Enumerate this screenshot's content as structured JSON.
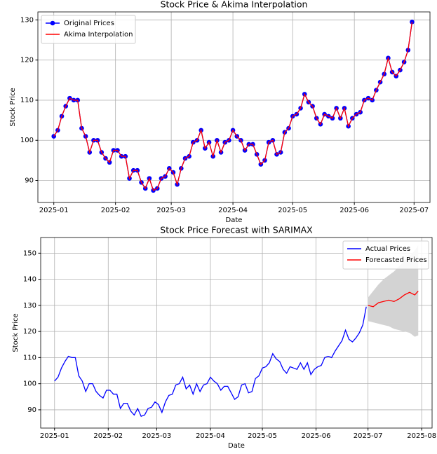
{
  "chart_data": [
    {
      "type": "line",
      "title": "Stock Price & Akima Interpolation",
      "xlabel": "Date",
      "ylabel": "Stock Price",
      "x": [
        0,
        2,
        4,
        6,
        8,
        10,
        12,
        14,
        16,
        18,
        20,
        22,
        24,
        26,
        28,
        30,
        32,
        34,
        36,
        38,
        40,
        42,
        44,
        46,
        48,
        50,
        52,
        54,
        56,
        58,
        60,
        62,
        64,
        66,
        68,
        70,
        72,
        74,
        76,
        78,
        80,
        82,
        84,
        86,
        88,
        90,
        92,
        94,
        96,
        98,
        100,
        102,
        104,
        106,
        108,
        110,
        112,
        114,
        116,
        118,
        120,
        122,
        124,
        126,
        128,
        130,
        132,
        134,
        136,
        138,
        140,
        142,
        144,
        146,
        148,
        150,
        152,
        154,
        156,
        158,
        160,
        162,
        164,
        166,
        168,
        170,
        172,
        174,
        176,
        178,
        180
      ],
      "series": [
        {
          "name": "Original Prices",
          "color": "#0000ff",
          "marker": true,
          "values": [
            101,
            102.5,
            106,
            108.5,
            110.5,
            110,
            110,
            103,
            101,
            97,
            100,
            100,
            97,
            95.5,
            94.5,
            97.5,
            97.5,
            96,
            96,
            90.5,
            92.5,
            92.5,
            89.5,
            88,
            90.5,
            87.5,
            88,
            90.5,
            91,
            93,
            92,
            89,
            93,
            95.5,
            96,
            99.5,
            100,
            102.5,
            98,
            99.5,
            96,
            100,
            97,
            99.5,
            100,
            102.5,
            101,
            100,
            97.5,
            99,
            99,
            96.5,
            94,
            95,
            99.5,
            100,
            96.5,
            97,
            102,
            103,
            106,
            106.5,
            108,
            111.5,
            109.5,
            108.5,
            105.5,
            104,
            106.5,
            106,
            105.5,
            108,
            105.5,
            108,
            103.5,
            105.5,
            106.5,
            107,
            110,
            110.5,
            110,
            112.5,
            114.5,
            116.5,
            120.5,
            117,
            116,
            117.5,
            119.5,
            122.5,
            129.5
          ]
        },
        {
          "name": "Akima Interpolation",
          "color": "#ff0000",
          "marker": false,
          "values": [
            101,
            102.5,
            106,
            108.5,
            110.5,
            110,
            110,
            103,
            101,
            97,
            100,
            100,
            97,
            95.5,
            94.5,
            97.5,
            97.5,
            96,
            96,
            90.5,
            92.5,
            92.5,
            89.5,
            88,
            90.5,
            87.5,
            88,
            90.5,
            91,
            93,
            92,
            89,
            93,
            95.5,
            96,
            99.5,
            100,
            102.5,
            98,
            99.5,
            96,
            100,
            97,
            99.5,
            100,
            102.5,
            101,
            100,
            97.5,
            99,
            99,
            96.5,
            94,
            95,
            99.5,
            100,
            96.5,
            97,
            102,
            103,
            106,
            106.5,
            108,
            111.5,
            109.5,
            108.5,
            105.5,
            104,
            106.5,
            106,
            105.5,
            108,
            105.5,
            108,
            103.5,
            105.5,
            106.5,
            107,
            110,
            110.5,
            110,
            112.5,
            114.5,
            116.5,
            120.5,
            117,
            116,
            117.5,
            119.5,
            122.5,
            129.5
          ]
        }
      ],
      "xlim": [
        -8,
        189
      ],
      "ylim": [
        84.5,
        132
      ],
      "xticks": [
        {
          "value": 0,
          "label": "2025-01"
        },
        {
          "value": 31,
          "label": "2025-02"
        },
        {
          "value": 59,
          "label": "2025-03"
        },
        {
          "value": 90,
          "label": "2025-04"
        },
        {
          "value": 120,
          "label": "2025-05"
        },
        {
          "value": 151,
          "label": "2025-06"
        },
        {
          "value": 181,
          "label": "2025-07"
        }
      ],
      "yticks": [
        90,
        100,
        110,
        120,
        130
      ],
      "grid": true,
      "legend": "upper left"
    },
    {
      "type": "line",
      "title": "Stock Price Forecast with SARIMAX",
      "xlabel": "Date",
      "ylabel": "Stock Price",
      "x": [
        0,
        2,
        4,
        6,
        8,
        10,
        12,
        14,
        16,
        18,
        20,
        22,
        24,
        26,
        28,
        30,
        32,
        34,
        36,
        38,
        40,
        42,
        44,
        46,
        48,
        50,
        52,
        54,
        56,
        58,
        60,
        62,
        64,
        66,
        68,
        70,
        72,
        74,
        76,
        78,
        80,
        82,
        84,
        86,
        88,
        90,
        92,
        94,
        96,
        98,
        100,
        102,
        104,
        106,
        108,
        110,
        112,
        114,
        116,
        118,
        120,
        122,
        124,
        126,
        128,
        130,
        132,
        134,
        136,
        138,
        140,
        142,
        144,
        146,
        148,
        150,
        152,
        154,
        156,
        158,
        160,
        162,
        164,
        166,
        168,
        170,
        172,
        174,
        176,
        178,
        180
      ],
      "series": [
        {
          "name": "Actual Prices",
          "color": "#0000ff",
          "values": [
            101,
            102.5,
            106,
            108.5,
            110.5,
            110,
            110,
            103,
            101,
            97,
            100,
            100,
            97,
            95.5,
            94.5,
            97.5,
            97.5,
            96,
            96,
            90.5,
            92.5,
            92.5,
            89.5,
            88,
            90.5,
            87.5,
            88,
            90.5,
            91,
            93,
            92,
            89,
            93,
            95.5,
            96,
            99.5,
            100,
            102.5,
            98,
            99.5,
            96,
            100,
            97,
            99.5,
            100,
            102.5,
            101,
            100,
            97.5,
            99,
            99,
            96.5,
            94,
            95,
            99.5,
            100,
            96.5,
            97,
            102,
            103,
            106,
            106.5,
            108,
            111.5,
            109.5,
            108.5,
            105.5,
            104,
            106.5,
            106,
            105.5,
            108,
            105.5,
            108,
            103.5,
            105.5,
            106.5,
            107,
            110,
            110.5,
            110,
            112.5,
            114.5,
            116.5,
            120.5,
            117,
            116,
            117.5,
            119.5,
            122.5,
            129.5
          ]
        },
        {
          "name": "Forecasted Prices",
          "color": "#ff0000",
          "x": [
            181,
            184,
            187,
            190,
            193,
            196,
            199,
            202,
            205,
            208,
            210
          ],
          "values": [
            130,
            129.5,
            131,
            131.5,
            132,
            131.5,
            132.5,
            134,
            135,
            134,
            135.5
          ]
        }
      ],
      "band": {
        "color": "#d3d3d3",
        "x": [
          181,
          184,
          187,
          190,
          193,
          196,
          199,
          202,
          205,
          208,
          210
        ],
        "lower": [
          124,
          123.5,
          123,
          122.5,
          122,
          121,
          120.5,
          120,
          119.5,
          118,
          118.5
        ],
        "upper": [
          133,
          135.5,
          138,
          140,
          141.5,
          143,
          145,
          147,
          149,
          151,
          153
        ]
      },
      "xlim": [
        -8,
        218
      ],
      "ylim": [
        83,
        156
      ],
      "xticks": [
        {
          "value": 0,
          "label": "2025-01"
        },
        {
          "value": 31,
          "label": "2025-02"
        },
        {
          "value": 59,
          "label": "2025-03"
        },
        {
          "value": 90,
          "label": "2025-04"
        },
        {
          "value": 120,
          "label": "2025-05"
        },
        {
          "value": 151,
          "label": "2025-06"
        },
        {
          "value": 181,
          "label": "2025-07"
        },
        {
          "value": 212,
          "label": "2025-08"
        }
      ],
      "yticks": [
        90,
        100,
        110,
        120,
        130,
        140,
        150
      ],
      "grid": true,
      "legend": "upper right"
    }
  ]
}
